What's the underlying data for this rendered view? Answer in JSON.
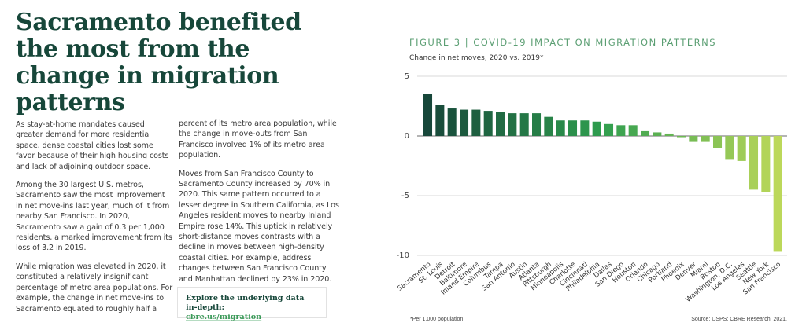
{
  "article": {
    "headline": "Sacramento benefited the most from the change in migration patterns",
    "paragraphs_col1": [
      "As stay-at-home mandates caused greater demand for more residential space, dense coastal cities lost some favor because of their high housing costs and lack of adjoining outdoor space.",
      "Among the 30 largest U.S. metros, Sacramento saw the most improvement in net move-ins last year, much of it from nearby San Francisco. In 2020, Sacramento saw a gain of 0.3 per 1,000 residents, a marked improvement from its loss of 3.2 in 2019.",
      "While migration was elevated in 2020, it constituted a relatively insignificant percentage of metro area populations. For example, the change in net move-ins to Sacramento equated to roughly half a"
    ],
    "paragraphs_col2": [
      "percent of its metro area population, while the change in move-outs from San Francisco involved 1% of its metro area population.",
      "Moves from San Francisco County to Sacramento County increased by 70% in 2020. This same pattern occurred to a lesser degree in Southern California, as Los Angeles resident moves to nearby Inland Empire rose 14%. This uptick in relatively short-distance moves contrasts with a decline in moves between high-density coastal cities. For example, address changes between San Francisco County and Manhattan declined by 23% in 2020."
    ],
    "cta": {
      "title": "Explore the underlying data in-depth:",
      "link": "cbre.us/migration"
    }
  },
  "figure": {
    "title": "FIGURE 3 | COVID-19 IMPACT ON MIGRATION PATTERNS",
    "footnote": "*Per 1,000 population.",
    "source": "Source: USPS; CBRE Research, 2021."
  },
  "chart_data": {
    "type": "bar",
    "title": "FIGURE 3 | COVID-19 IMPACT ON MIGRATION PATTERNS",
    "subtitle": "Change in net moves, 2020 vs. 2019*",
    "xlabel": "",
    "ylabel": "",
    "ylim": [
      -10,
      5
    ],
    "yticks": [
      5,
      0,
      -5,
      -10
    ],
    "grid": true,
    "categories": [
      "Sacramento",
      "St. Louis",
      "Detroit",
      "Baltimore",
      "Inland Empire",
      "Columbus",
      "Tampa",
      "San Antonio",
      "Austin",
      "Atlanta",
      "Pittsburgh",
      "Minneapolis",
      "Charlotte",
      "Cincinnati",
      "Philadelphia",
      "Dallas",
      "San Diego",
      "Houston",
      "Orlando",
      "Chicago",
      "Portland",
      "Phoenix",
      "Denver",
      "Miami",
      "Boston",
      "Washington, D.C.",
      "Los Angeles",
      "Seattle",
      "New York",
      "San Francisco"
    ],
    "values": [
      3.5,
      2.6,
      2.3,
      2.2,
      2.2,
      2.1,
      2.0,
      1.9,
      1.9,
      1.9,
      1.6,
      1.3,
      1.3,
      1.3,
      1.2,
      1.0,
      0.9,
      0.9,
      0.4,
      0.3,
      0.2,
      -0.1,
      -0.5,
      -0.5,
      -1.0,
      -2.0,
      -2.1,
      -4.5,
      -4.7,
      -9.7
    ],
    "colors": {
      "start": "#17473a",
      "mid": "#2f9e4f",
      "end": "#bcd85a"
    }
  }
}
